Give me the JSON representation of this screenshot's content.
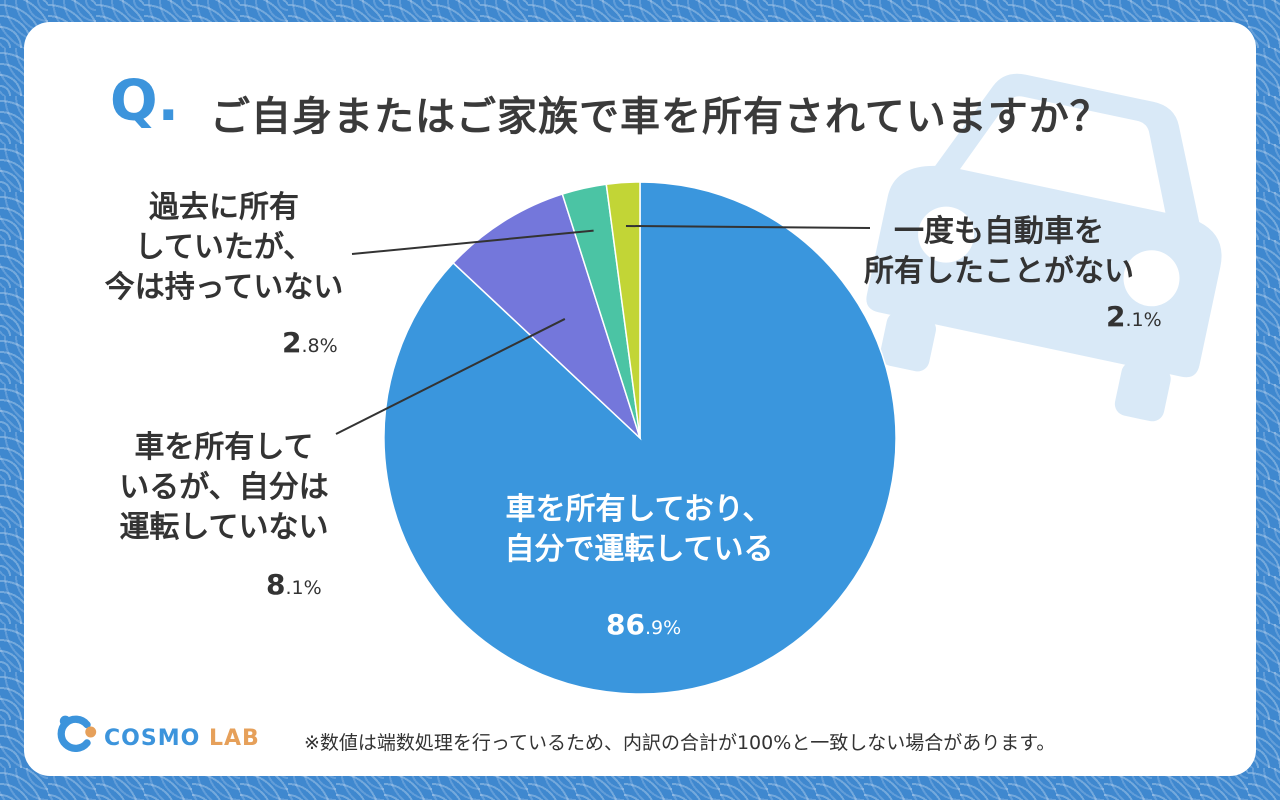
{
  "header": {
    "q_mark": "Q.",
    "question": "ご自身またはご家族で車を所有されていますか？"
  },
  "chart_data": {
    "type": "pie",
    "title": "ご自身またはご家族で車を所有されていますか？",
    "start": "12 o'clock, clockwise",
    "slices": [
      {
        "label": "車を所有しており、自分で運転している",
        "lines": [
          "車を所有しており、",
          "自分で運転している"
        ],
        "value": 86.9,
        "pct_int": "86",
        "pct_dec": ".9%",
        "color": "#3a96dd"
      },
      {
        "label": "車を所有しているが、自分は運転していない",
        "lines": [
          "車を所有して",
          "いるが、自分は",
          "運転していない"
        ],
        "value": 8.1,
        "pct_int": "8",
        "pct_dec": ".1%",
        "color": "#7477db"
      },
      {
        "label": "過去に所有していたが、今は持っていない",
        "lines": [
          "過去に所有",
          "していたが、",
          "今は持っていない"
        ],
        "value": 2.8,
        "pct_int": "2",
        "pct_dec": ".8%",
        "color": "#4bc4a4"
      },
      {
        "label": "一度も自動車を所有したことがない",
        "lines": [
          "一度も自動車を",
          "所有したことがない"
        ],
        "value": 2.1,
        "pct_int": "2",
        "pct_dec": ".1%",
        "color": "#c2d536"
      }
    ]
  },
  "colors": {
    "background": "#3f88cf",
    "card": "#ffffff",
    "accent": "#3c94dc",
    "car_watermark": "#d9e9f7",
    "text": "#333333"
  },
  "decor": {
    "watermark_icon": "car-icon",
    "logo_icon": "cosmo-lab-logo"
  },
  "footer": {
    "logo_main": "COSMO",
    "logo_sub": "LAB",
    "note": "※数値は端数処理を行っているため、内訳の合計が100%と一致しない場合があります。"
  }
}
